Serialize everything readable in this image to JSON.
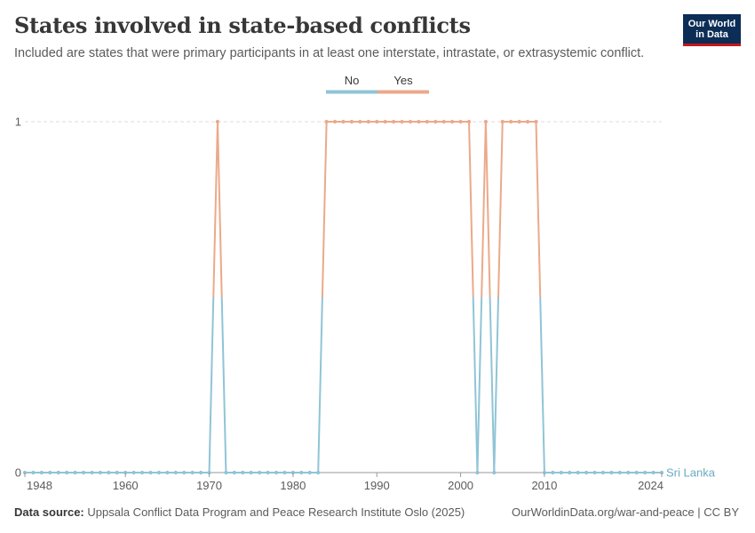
{
  "header": {
    "title": "States involved in state-based conflicts",
    "subtitle": "Included are states that were primary participants in at least one interstate, intrastate, or extrasystemic conflict."
  },
  "logo": {
    "line1": "Our World",
    "line2": "in Data"
  },
  "footer": {
    "source_label": "Data source:",
    "source_text": "Uppsala Conflict Data Program and Peace Research Institute Oslo (2025)",
    "right_text": "OurWorldinData.org/war-and-peace | CC BY"
  },
  "colors": {
    "no": "#90c4d6",
    "yes": "#eba98a",
    "grid": "#dddddd",
    "axis": "#999999"
  },
  "chart_data": {
    "type": "line",
    "title": "States involved in state-based conflicts",
    "subtitle": "Included are states that were primary participants in at least one interstate, intrastate, or extrasystemic conflict.",
    "xlabel": "",
    "ylabel": "",
    "entity": "Sri Lanka",
    "xlim": [
      1948,
      2024
    ],
    "ylim": [
      0,
      1
    ],
    "x_ticks": [
      "1948",
      "1960",
      "1970",
      "1980",
      "1990",
      "2000",
      "2010",
      "2024"
    ],
    "y_ticks": [
      "0",
      "1"
    ],
    "legend": {
      "placement": "top-center",
      "items": [
        "No",
        "Yes"
      ]
    },
    "grid": "horizontal dashed",
    "series": [
      {
        "name": "Sri Lanka",
        "color_map": {
          "0": "No",
          "1": "Yes"
        },
        "x": [
          1948,
          1949,
          1950,
          1951,
          1952,
          1953,
          1954,
          1955,
          1956,
          1957,
          1958,
          1959,
          1960,
          1961,
          1962,
          1963,
          1964,
          1965,
          1966,
          1967,
          1968,
          1969,
          1970,
          1971,
          1972,
          1973,
          1974,
          1975,
          1976,
          1977,
          1978,
          1979,
          1980,
          1981,
          1982,
          1983,
          1984,
          1985,
          1986,
          1987,
          1988,
          1989,
          1990,
          1991,
          1992,
          1993,
          1994,
          1995,
          1996,
          1997,
          1998,
          1999,
          2000,
          2001,
          2002,
          2003,
          2004,
          2005,
          2006,
          2007,
          2008,
          2009,
          2010,
          2011,
          2012,
          2013,
          2014,
          2015,
          2016,
          2017,
          2018,
          2019,
          2020,
          2021,
          2022,
          2023,
          2024
        ],
        "values": [
          0,
          0,
          0,
          0,
          0,
          0,
          0,
          0,
          0,
          0,
          0,
          0,
          0,
          0,
          0,
          0,
          0,
          0,
          0,
          0,
          0,
          0,
          0,
          1,
          0,
          0,
          0,
          0,
          0,
          0,
          0,
          0,
          0,
          0,
          0,
          0,
          1,
          1,
          1,
          1,
          1,
          1,
          1,
          1,
          1,
          1,
          1,
          1,
          1,
          1,
          1,
          1,
          1,
          1,
          0,
          1,
          0,
          1,
          1,
          1,
          1,
          1,
          0,
          0,
          0,
          0,
          0,
          0,
          0,
          0,
          0,
          0,
          0,
          0,
          0,
          0,
          0
        ]
      }
    ]
  }
}
